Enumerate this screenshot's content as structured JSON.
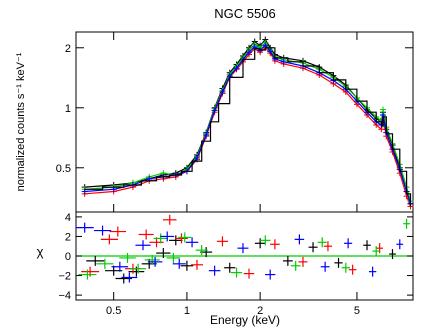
{
  "chart_data": [
    {
      "type": "line",
      "title": "NGC 5506",
      "xlabel": "",
      "ylabel": "normalized counts s⁻¹ keV⁻¹",
      "x_scale": "log",
      "y_scale": "log",
      "xlim": [
        0.35,
        8.5
      ],
      "ylim": [
        0.3,
        2.4
      ],
      "y_ticks": [
        0.5,
        1,
        2
      ],
      "y_tick_labels": [
        "0.5",
        "1",
        "2"
      ],
      "grid": false,
      "legend": "none",
      "series": [
        {
          "color": "#000000",
          "x": [
            0.38,
            0.5,
            0.6,
            0.7,
            0.8,
            0.9,
            1.0,
            1.1,
            1.2,
            1.3,
            1.4,
            1.5,
            1.6,
            1.7,
            1.8,
            1.9,
            2.0,
            2.1,
            2.2,
            2.3,
            2.5,
            3.0,
            3.5,
            4.0,
            4.5,
            5.0,
            5.5,
            6.0,
            6.3,
            6.4,
            6.6,
            7.0,
            7.5,
            8.0,
            8.3
          ],
          "y": [
            0.4,
            0.41,
            0.42,
            0.44,
            0.46,
            0.47,
            0.5,
            0.58,
            0.75,
            1.0,
            1.25,
            1.5,
            1.65,
            1.82,
            2.0,
            2.15,
            2.05,
            2.2,
            2.0,
            1.85,
            1.78,
            1.72,
            1.6,
            1.45,
            1.3,
            1.12,
            0.98,
            0.88,
            0.85,
            0.95,
            0.78,
            0.65,
            0.5,
            0.38,
            0.33
          ]
        },
        {
          "color": "#ff0000",
          "x": [
            0.38,
            0.5,
            0.6,
            0.7,
            0.8,
            0.9,
            1.0,
            1.1,
            1.2,
            1.3,
            1.4,
            1.5,
            1.6,
            1.7,
            1.8,
            1.9,
            2.0,
            2.1,
            2.2,
            2.3,
            2.5,
            3.0,
            3.5,
            4.0,
            4.5,
            5.0,
            5.5,
            6.0,
            6.3,
            6.4,
            6.6,
            7.0,
            7.5,
            8.0,
            8.3
          ],
          "y": [
            0.37,
            0.38,
            0.4,
            0.43,
            0.44,
            0.45,
            0.48,
            0.55,
            0.72,
            0.95,
            1.18,
            1.42,
            1.56,
            1.7,
            1.85,
            1.98,
            1.9,
            2.0,
            1.88,
            1.72,
            1.66,
            1.58,
            1.46,
            1.32,
            1.2,
            1.04,
            0.92,
            0.82,
            0.78,
            0.88,
            0.72,
            0.6,
            0.47,
            0.36,
            0.32
          ]
        },
        {
          "color": "#00cc00",
          "x": [
            0.38,
            0.5,
            0.6,
            0.7,
            0.8,
            0.9,
            1.0,
            1.1,
            1.2,
            1.3,
            1.4,
            1.5,
            1.6,
            1.7,
            1.8,
            1.9,
            2.0,
            2.1,
            2.2,
            2.3,
            2.5,
            3.0,
            3.5,
            4.0,
            4.5,
            5.0,
            5.5,
            6.0,
            6.3,
            6.4,
            6.6,
            7.0,
            7.5,
            8.0,
            8.3
          ],
          "y": [
            0.39,
            0.4,
            0.42,
            0.45,
            0.47,
            0.46,
            0.49,
            0.57,
            0.74,
            0.99,
            1.22,
            1.47,
            1.62,
            1.78,
            1.95,
            2.08,
            2.0,
            2.12,
            1.95,
            1.8,
            1.74,
            1.68,
            1.56,
            1.42,
            1.28,
            1.12,
            1.0,
            0.9,
            0.86,
            0.98,
            0.8,
            0.66,
            0.52,
            0.4,
            0.34
          ]
        },
        {
          "color": "#0000ff",
          "x": [
            0.38,
            0.5,
            0.6,
            0.7,
            0.8,
            0.9,
            1.0,
            1.1,
            1.2,
            1.3,
            1.4,
            1.5,
            1.6,
            1.7,
            1.8,
            1.9,
            2.0,
            2.1,
            2.2,
            2.3,
            2.5,
            3.0,
            3.5,
            4.0,
            4.5,
            5.0,
            5.5,
            6.0,
            6.3,
            6.4,
            6.6,
            7.0,
            7.5,
            8.0,
            8.3
          ],
          "y": [
            0.38,
            0.39,
            0.41,
            0.44,
            0.45,
            0.46,
            0.48,
            0.56,
            0.73,
            0.97,
            1.2,
            1.44,
            1.58,
            1.74,
            1.9,
            2.02,
            1.94,
            2.06,
            1.92,
            1.76,
            1.7,
            1.62,
            1.5,
            1.37,
            1.24,
            1.08,
            0.95,
            0.85,
            0.82,
            0.92,
            0.75,
            0.62,
            0.49,
            0.38,
            0.33
          ]
        }
      ],
      "model_x": [
        0.38,
        0.45,
        0.55,
        0.65,
        0.75,
        0.85,
        0.95,
        1.05,
        1.15,
        1.25,
        1.35,
        1.5,
        1.7,
        1.9,
        2.0,
        2.1,
        2.3,
        2.6,
        3.0,
        3.5,
        4.0,
        4.5,
        5.0,
        5.5,
        6.0,
        6.3,
        6.4,
        6.6,
        7.0,
        7.5,
        8.0,
        8.3
      ],
      "model_y": [
        0.39,
        0.4,
        0.41,
        0.43,
        0.45,
        0.46,
        0.48,
        0.54,
        0.68,
        0.85,
        1.05,
        1.42,
        1.75,
        1.98,
        1.95,
        2.0,
        1.78,
        1.7,
        1.62,
        1.5,
        1.38,
        1.24,
        1.08,
        0.95,
        0.85,
        0.81,
        0.9,
        0.74,
        0.62,
        0.48,
        0.37,
        0.32
      ]
    },
    {
      "type": "scatter",
      "title": "",
      "xlabel": "Energy (keV)",
      "ylabel": "χ",
      "x_scale": "log",
      "xlim": [
        0.35,
        8.5
      ],
      "ylim": [
        -4.5,
        4.5
      ],
      "x_ticks": [
        0.5,
        1,
        2,
        5
      ],
      "x_tick_labels": [
        "0.5",
        "1",
        "2",
        "5"
      ],
      "y_ticks": [
        -4,
        -2,
        0,
        2,
        4
      ],
      "y_tick_labels": [
        "−4",
        "−2",
        "0",
        "2",
        "4"
      ],
      "reference_line": 0,
      "grid": false,
      "legend": "none",
      "series": [
        {
          "color": "#000000",
          "x": [
            0.42,
            0.5,
            0.55,
            0.62,
            0.7,
            0.8,
            0.9,
            1.0,
            1.2,
            1.5,
            2.0,
            2.6,
            3.3,
            4.2,
            5.5,
            7.0
          ],
          "y": [
            -0.5,
            -1.5,
            -2.3,
            -1.6,
            -0.8,
            0.3,
            1.6,
            -1.0,
            0.4,
            -1.2,
            1.3,
            -0.5,
            0.9,
            -0.7,
            1.1,
            0.2
          ]
        },
        {
          "color": "#ff0000",
          "x": [
            0.4,
            0.48,
            0.52,
            0.6,
            0.68,
            0.75,
            0.85,
            0.95,
            1.1,
            1.4,
            1.8,
            2.3,
            3.0,
            3.8,
            4.8,
            6.2
          ],
          "y": [
            -1.6,
            1.7,
            2.5,
            -1.3,
            2.2,
            1.4,
            3.7,
            1.8,
            -0.9,
            1.5,
            -1.8,
            1.2,
            -0.6,
            1.0,
            -1.4,
            0.8
          ]
        },
        {
          "color": "#00cc00",
          "x": [
            0.39,
            0.46,
            0.57,
            0.63,
            0.72,
            0.78,
            0.88,
            0.98,
            1.15,
            1.6,
            2.1,
            2.8,
            3.6,
            4.5,
            6.0,
            8.0
          ],
          "y": [
            -1.9,
            -0.8,
            -0.2,
            -1.3,
            -0.4,
            1.8,
            -0.2,
            1.9,
            0.6,
            -1.7,
            1.6,
            -1.0,
            1.4,
            -1.2,
            0.5,
            3.3
          ]
        },
        {
          "color": "#0000ff",
          "x": [
            0.38,
            0.45,
            0.53,
            0.58,
            0.66,
            0.74,
            0.83,
            0.93,
            1.05,
            1.3,
            1.7,
            2.2,
            2.9,
            3.7,
            4.6,
            5.8,
            7.5
          ],
          "y": [
            2.9,
            2.6,
            -1.1,
            -2.2,
            1.1,
            -0.6,
            2.0,
            -0.8,
            1.4,
            -1.5,
            0.8,
            -1.9,
            1.7,
            -1.1,
            1.3,
            -1.6,
            1.2
          ]
        }
      ]
    }
  ]
}
